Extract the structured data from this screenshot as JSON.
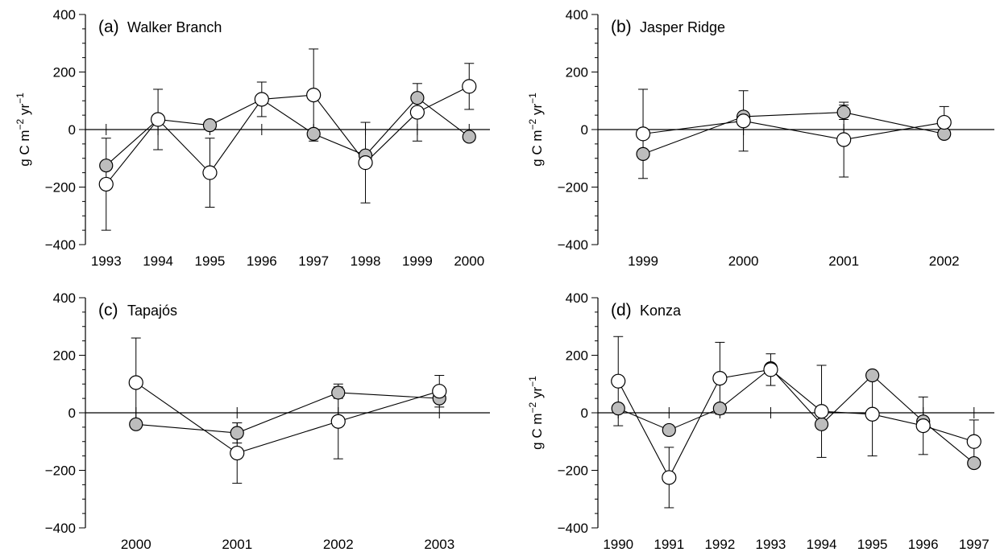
{
  "figure": {
    "marker_colors": {
      "filled": "#bdbdbd",
      "open": "#ffffff",
      "stroke": "#000000"
    }
  },
  "chart_data": [
    {
      "type": "scatter",
      "panel_label": "(a)",
      "title": "Walker Branch",
      "ylabel": "g C m−2 yr−1",
      "ylim": [
        -400,
        400
      ],
      "yticks": [
        -400,
        -200,
        0,
        200,
        400
      ],
      "xlim": [
        1992.6,
        2000.4
      ],
      "x": [
        1993,
        1994,
        1995,
        1996,
        1997,
        1998,
        1999,
        2000
      ],
      "xtick_labels": [
        "1993",
        "1994",
        "1995",
        "1996",
        "1997",
        "1998",
        "1999",
        "2000"
      ],
      "series": [
        {
          "marker": "filled",
          "values": [
            -125,
            35,
            15,
            105,
            -15,
            -90,
            110,
            -25
          ],
          "err": [
            null,
            null,
            null,
            null,
            null,
            null,
            null,
            null
          ]
        },
        {
          "marker": "open",
          "values": [
            -190,
            35,
            -150,
            105,
            120,
            -115,
            60,
            150
          ],
          "err": [
            160,
            105,
            120,
            60,
            160,
            140,
            100,
            80
          ]
        }
      ]
    },
    {
      "type": "scatter",
      "panel_label": "(b)",
      "title": "Jasper Ridge",
      "ylabel": "g C m−2 yr−1",
      "ylim": [
        -400,
        400
      ],
      "yticks": [
        -400,
        -200,
        0,
        200,
        400
      ],
      "xlim": [
        1998.55,
        2002.5
      ],
      "x": [
        1999,
        2000,
        2001,
        2002
      ],
      "xtick_labels": [
        "1999",
        "2000",
        "2001",
        "2002"
      ],
      "series": [
        {
          "marker": "filled",
          "values": [
            -85,
            45,
            60,
            -15
          ],
          "err": [
            null,
            null,
            25,
            null
          ]
        },
        {
          "marker": "open",
          "values": [
            -15,
            30,
            -35,
            25
          ],
          "err": [
            155,
            105,
            130,
            55
          ]
        }
      ]
    },
    {
      "type": "scatter",
      "panel_label": "(c)",
      "title": "Tapajós",
      "ylabel": "",
      "ylim": [
        -400,
        400
      ],
      "yticks": [
        -400,
        -200,
        0,
        200,
        400
      ],
      "xlim": [
        1999.5,
        2003.5
      ],
      "x": [
        2000,
        2001,
        2002,
        2003
      ],
      "xtick_labels": [
        "2000",
        "2001",
        "2002",
        "2003"
      ],
      "series": [
        {
          "marker": "filled",
          "values": [
            -40,
            -70,
            70,
            50
          ],
          "err": [
            null,
            35,
            20,
            null
          ]
        },
        {
          "marker": "open",
          "values": [
            105,
            -140,
            -30,
            75
          ],
          "err": [
            155,
            105,
            130,
            55
          ]
        }
      ]
    },
    {
      "type": "scatter",
      "panel_label": "(d)",
      "title": "Konza",
      "ylabel": "g C m−2 yr−1",
      "ylim": [
        -400,
        400
      ],
      "yticks": [
        -400,
        -200,
        0,
        200,
        400
      ],
      "xlim": [
        1989.6,
        1997.4
      ],
      "x": [
        1990,
        1991,
        1992,
        1993,
        1994,
        1995,
        1996,
        1997
      ],
      "xtick_labels": [
        "1990",
        "1991",
        "1992",
        "1993",
        "1994",
        "1995",
        "1996",
        "1997"
      ],
      "series": [
        {
          "marker": "filled",
          "values": [
            15,
            -60,
            15,
            155,
            -40,
            130,
            -30,
            -175
          ],
          "err": [
            null,
            null,
            null,
            null,
            null,
            null,
            null,
            null
          ]
        },
        {
          "marker": "open",
          "values": [
            110,
            -225,
            120,
            150,
            5,
            -5,
            -45,
            -100
          ],
          "err": [
            155,
            105,
            125,
            55,
            160,
            145,
            100,
            75
          ]
        }
      ]
    }
  ]
}
